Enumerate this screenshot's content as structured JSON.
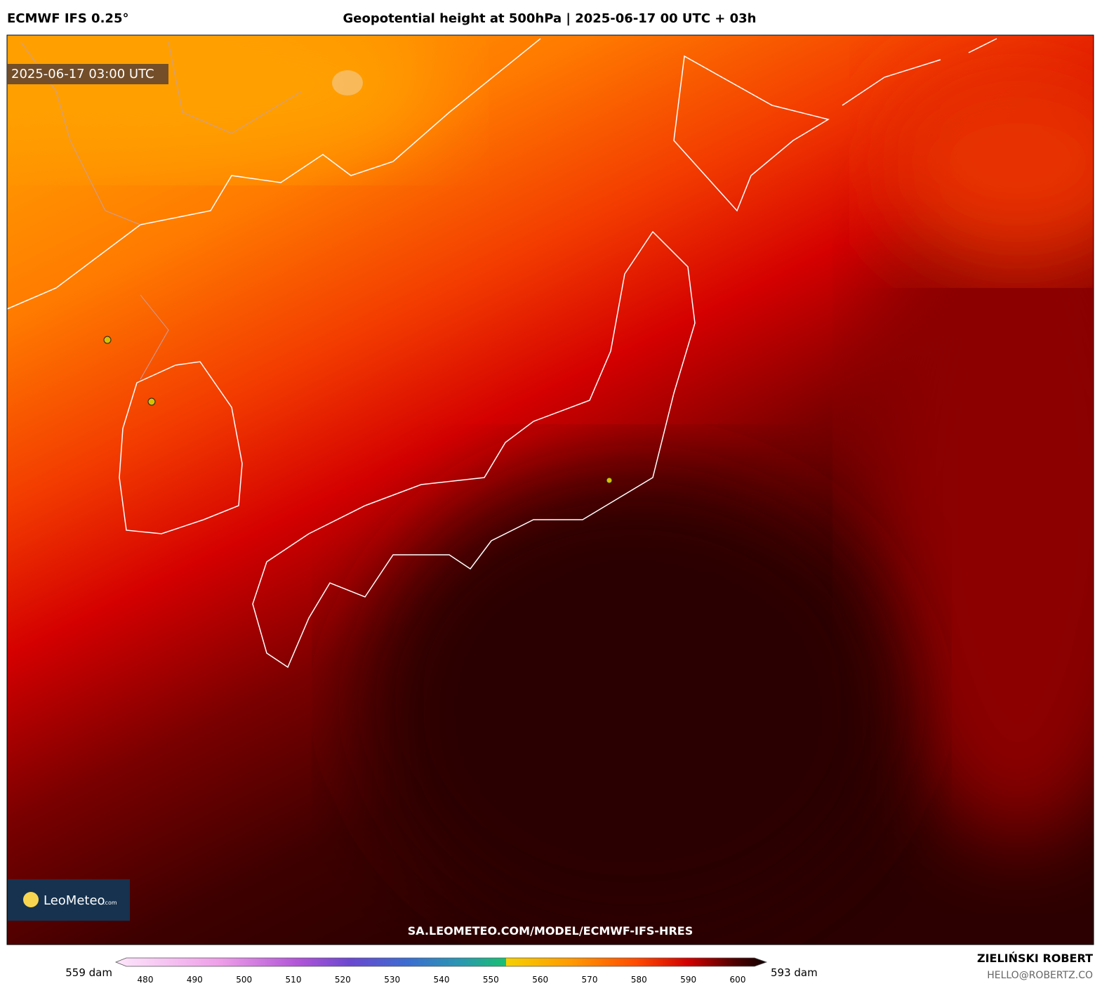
{
  "header": {
    "model": "ECMWF IFS 0.25°",
    "title": "Geopotential height at 500hPa | 2025-06-17 00 UTC + 03h"
  },
  "map": {
    "timestamp": "2025-06-17 03:00 UTC",
    "logo": {
      "name": "LeoMeteo",
      "suffix": ".com"
    },
    "url": "SA.LEOMETEO.COM/MODEL/ECMWF-IFS-HRES"
  },
  "legend": {
    "min_label": "559 dam",
    "max_label": "593 dam",
    "ticks": [
      480,
      490,
      500,
      510,
      520,
      530,
      540,
      550,
      560,
      570,
      580,
      590,
      600
    ]
  },
  "footer": {
    "author": "ZIELIŃSKI ROBERT",
    "email": "HELLO@ROBERTZ.CO"
  }
}
